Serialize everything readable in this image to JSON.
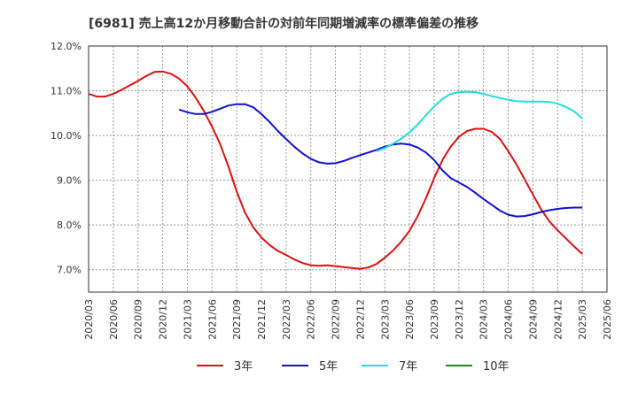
{
  "chart_data": {
    "type": "line",
    "title": "[6981]  売上高12か月移動合計の対前年同期増減率の標準偏差の推移",
    "xlabel": "",
    "ylabel": "",
    "ylim": [
      6.5,
      12.0
    ],
    "yticks": [
      "12.0%",
      "11.0%",
      "10.0%",
      "9.0%",
      "8.0%",
      "7.0%"
    ],
    "ytick_values": [
      12.0,
      11.0,
      10.0,
      9.0,
      8.0,
      7.0
    ],
    "x_ticks": [
      "2020/03",
      "2020/06",
      "2020/09",
      "2020/12",
      "2021/03",
      "2021/06",
      "2021/09",
      "2021/12",
      "2022/03",
      "2022/06",
      "2022/09",
      "2022/12",
      "2023/03",
      "2023/06",
      "2023/09",
      "2023/12",
      "2024/03",
      "2024/06",
      "2024/09",
      "2024/12",
      "2025/03",
      "2025/06"
    ],
    "grid": "dotted",
    "legend_position": "bottom",
    "series": [
      {
        "name": "3年",
        "color": "#dd1111",
        "points": [
          [
            "2020/03",
            10.93
          ],
          [
            "2020/04",
            10.87
          ],
          [
            "2020/05",
            10.87
          ],
          [
            "2020/06",
            10.93
          ],
          [
            "2020/07",
            11.02
          ],
          [
            "2020/08",
            11.12
          ],
          [
            "2020/09",
            11.22
          ],
          [
            "2020/10",
            11.33
          ],
          [
            "2020/11",
            11.42
          ],
          [
            "2020/12",
            11.43
          ],
          [
            "2021/01",
            11.38
          ],
          [
            "2021/02",
            11.27
          ],
          [
            "2021/03",
            11.1
          ],
          [
            "2021/04",
            10.85
          ],
          [
            "2021/05",
            10.55
          ],
          [
            "2021/06",
            10.2
          ],
          [
            "2021/07",
            9.8
          ],
          [
            "2021/08",
            9.3
          ],
          [
            "2021/09",
            8.75
          ],
          [
            "2021/10",
            8.28
          ],
          [
            "2021/11",
            7.95
          ],
          [
            "2021/12",
            7.72
          ],
          [
            "2021/01b",
            7.55
          ],
          [
            "2022/02",
            7.42
          ],
          [
            "2022/03",
            7.33
          ],
          [
            "2022/04",
            7.23
          ],
          [
            "2022/05",
            7.15
          ],
          [
            "2022/06",
            7.1
          ],
          [
            "2022/07",
            7.09
          ],
          [
            "2022/08",
            7.1
          ],
          [
            "2022/09",
            7.08
          ],
          [
            "2022/10",
            7.06
          ],
          [
            "2022/11",
            7.04
          ],
          [
            "2022/12",
            7.02
          ],
          [
            "2023/01",
            7.05
          ],
          [
            "2023/02",
            7.13
          ],
          [
            "2023/03",
            7.27
          ],
          [
            "2023/04",
            7.43
          ],
          [
            "2023/05",
            7.63
          ],
          [
            "2023/06",
            7.87
          ],
          [
            "2023/07",
            8.2
          ],
          [
            "2023/08",
            8.6
          ],
          [
            "2023/09",
            9.05
          ],
          [
            "2023/10",
            9.45
          ],
          [
            "2023/11",
            9.75
          ],
          [
            "2023/12",
            9.97
          ],
          [
            "2024/01",
            10.1
          ],
          [
            "2024/02",
            10.15
          ],
          [
            "2024/03",
            10.15
          ],
          [
            "2024/04",
            10.08
          ],
          [
            "2024/05",
            9.92
          ],
          [
            "2024/06",
            9.65
          ],
          [
            "2024/07",
            9.35
          ],
          [
            "2024/08",
            9.02
          ],
          [
            "2024/09",
            8.68
          ],
          [
            "2024/10",
            8.35
          ],
          [
            "2024/11",
            8.08
          ],
          [
            "2024/12",
            7.88
          ],
          [
            "2025/01",
            7.7
          ],
          [
            "2025/02",
            7.52
          ],
          [
            "2025/03",
            7.35
          ]
        ]
      },
      {
        "name": "5年",
        "color": "#1111cc",
        "points": [
          [
            "2021/02",
            10.58
          ],
          [
            "2021/03",
            10.52
          ],
          [
            "2021/04",
            10.48
          ],
          [
            "2021/05",
            10.48
          ],
          [
            "2021/06",
            10.53
          ],
          [
            "2021/07",
            10.6
          ],
          [
            "2021/08",
            10.67
          ],
          [
            "2021/09",
            10.7
          ],
          [
            "2021/10",
            10.7
          ],
          [
            "2021/11",
            10.63
          ],
          [
            "2021/12",
            10.48
          ],
          [
            "2022/01",
            10.3
          ],
          [
            "2022/02",
            10.1
          ],
          [
            "2022/03",
            9.92
          ],
          [
            "2022/04",
            9.75
          ],
          [
            "2022/05",
            9.6
          ],
          [
            "2022/06",
            9.48
          ],
          [
            "2022/07",
            9.4
          ],
          [
            "2022/08",
            9.37
          ],
          [
            "2022/09",
            9.38
          ],
          [
            "2022/10",
            9.43
          ],
          [
            "2022/11",
            9.5
          ],
          [
            "2022/12",
            9.56
          ],
          [
            "2023/01",
            9.62
          ],
          [
            "2023/02",
            9.68
          ],
          [
            "2023/03",
            9.75
          ],
          [
            "2023/04",
            9.8
          ],
          [
            "2023/05",
            9.82
          ],
          [
            "2023/06",
            9.8
          ],
          [
            "2023/07",
            9.73
          ],
          [
            "2023/08",
            9.62
          ],
          [
            "2023/09",
            9.45
          ],
          [
            "2023/10",
            9.22
          ],
          [
            "2023/11",
            9.05
          ],
          [
            "2023/12",
            8.95
          ],
          [
            "2024/01",
            8.85
          ],
          [
            "2024/02",
            8.72
          ],
          [
            "2024/03",
            8.58
          ],
          [
            "2024/04",
            8.45
          ],
          [
            "2024/05",
            8.32
          ],
          [
            "2024/06",
            8.23
          ],
          [
            "2024/07",
            8.19
          ],
          [
            "2024/08",
            8.2
          ],
          [
            "2024/09",
            8.24
          ],
          [
            "2024/10",
            8.29
          ],
          [
            "2024/11",
            8.33
          ],
          [
            "2024/12",
            8.36
          ],
          [
            "2025/01",
            8.38
          ],
          [
            "2025/02",
            8.39
          ],
          [
            "2025/03",
            8.39
          ]
        ]
      },
      {
        "name": "7年",
        "color": "#22dddd",
        "points": [
          [
            "2023/02",
            9.65
          ],
          [
            "2023/03",
            9.72
          ],
          [
            "2023/04",
            9.82
          ],
          [
            "2023/05",
            9.93
          ],
          [
            "2023/06",
            10.07
          ],
          [
            "2023/07",
            10.25
          ],
          [
            "2023/08",
            10.45
          ],
          [
            "2023/09",
            10.65
          ],
          [
            "2023/10",
            10.82
          ],
          [
            "2023/11",
            10.93
          ],
          [
            "2023/12",
            10.97
          ],
          [
            "2024/01",
            10.98
          ],
          [
            "2024/02",
            10.97
          ],
          [
            "2024/03",
            10.93
          ],
          [
            "2024/04",
            10.88
          ],
          [
            "2024/05",
            10.84
          ],
          [
            "2024/06",
            10.8
          ],
          [
            "2024/07",
            10.77
          ],
          [
            "2024/08",
            10.76
          ],
          [
            "2024/09",
            10.76
          ],
          [
            "2024/10",
            10.76
          ],
          [
            "2024/11",
            10.75
          ],
          [
            "2024/12",
            10.71
          ],
          [
            "2025/01",
            10.64
          ],
          [
            "2025/02",
            10.54
          ],
          [
            "2025/03",
            10.38
          ]
        ]
      },
      {
        "name": "10年",
        "color": "#228822",
        "points": []
      }
    ]
  }
}
